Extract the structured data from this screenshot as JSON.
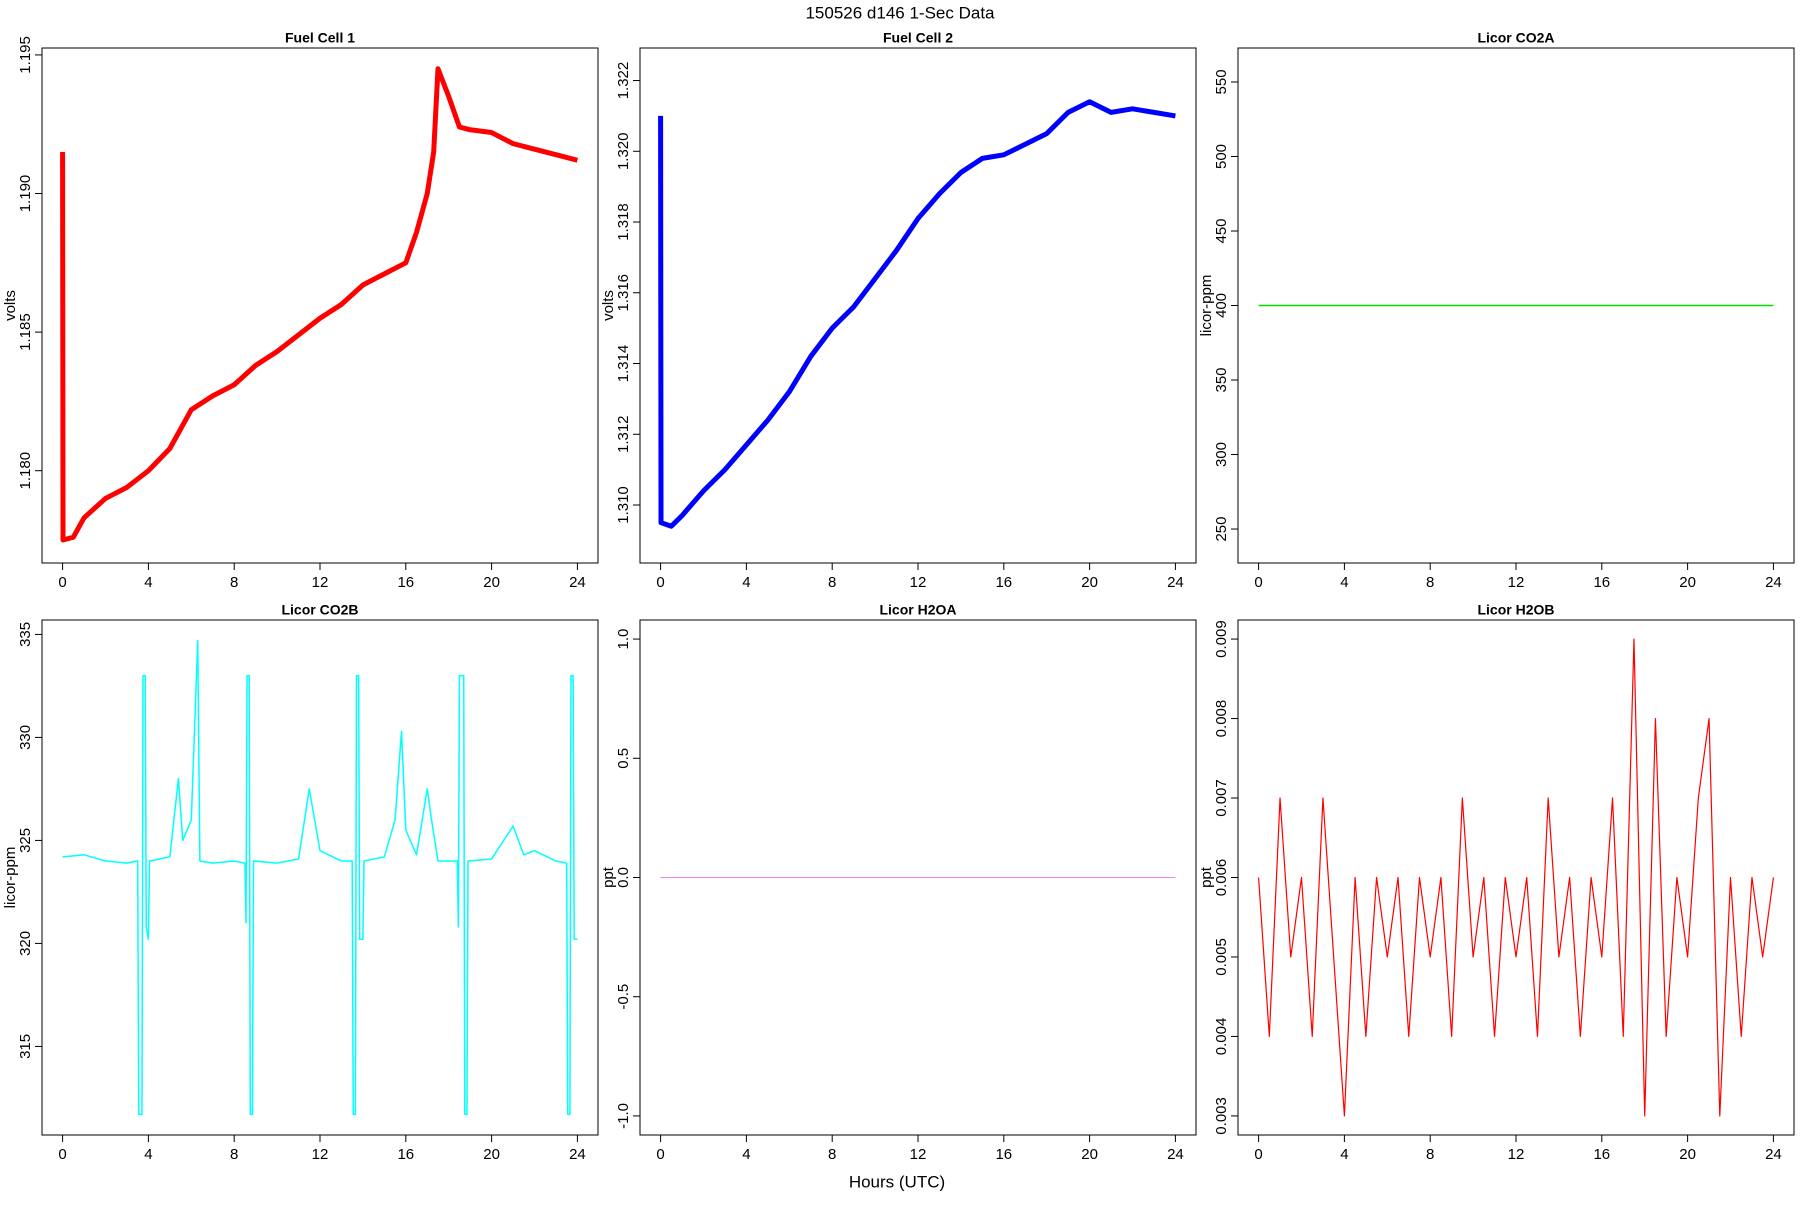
{
  "title": "150526   d146   1-Sec Data",
  "xlabel": "Hours (UTC)",
  "chart_data": [
    {
      "type": "line",
      "title": "Fuel Cell 1",
      "ylabel": "volts",
      "x": [
        0,
        0.02,
        0.5,
        1,
        2,
        3,
        4,
        5,
        6,
        7,
        8,
        9,
        10,
        11,
        12,
        13,
        14,
        15,
        16,
        16.5,
        17,
        17.3,
        17.5,
        18,
        18.5,
        19,
        20,
        21,
        22,
        23,
        24
      ],
      "series": [
        {
          "color": "#ff0000",
          "values": [
            1.1915,
            1.1775,
            1.1776,
            1.1783,
            1.179,
            1.1794,
            1.18,
            1.1808,
            1.1822,
            1.1827,
            1.1831,
            1.1838,
            1.1843,
            1.1849,
            1.1855,
            1.186,
            1.1867,
            1.1871,
            1.1875,
            1.1886,
            1.19,
            1.1915,
            1.1945,
            1.1935,
            1.1924,
            1.1923,
            1.1922,
            1.1918,
            1.1916,
            1.1914,
            1.1912
          ]
        }
      ],
      "xlim": [
        -0.96,
        24.96
      ],
      "xticks": [
        0,
        4,
        8,
        12,
        16,
        20,
        24
      ],
      "ylim": [
        1.17667,
        1.19525
      ],
      "yticks": [
        {
          "value": 1.18,
          "label": "1.180"
        },
        {
          "value": 1.185,
          "label": "1.185"
        },
        {
          "value": 1.19,
          "label": "1.190"
        },
        {
          "value": 1.195,
          "label": "1.195"
        }
      ]
    },
    {
      "type": "line",
      "title": "Fuel Cell 2",
      "ylabel": "volts",
      "x": [
        0,
        0.02,
        0.5,
        1,
        2,
        3,
        4,
        5,
        6,
        7,
        8,
        9,
        10,
        11,
        12,
        13,
        14,
        15,
        16,
        17,
        18,
        19,
        20,
        21,
        22,
        23,
        24
      ],
      "series": [
        {
          "color": "#0000ff",
          "values": [
            1.321,
            1.3095,
            1.3094,
            1.3097,
            1.3104,
            1.311,
            1.3117,
            1.3124,
            1.3132,
            1.3142,
            1.315,
            1.3156,
            1.3164,
            1.3172,
            1.3181,
            1.3188,
            1.3194,
            1.3198,
            1.3199,
            1.3202,
            1.3205,
            1.3211,
            1.3214,
            1.3211,
            1.3212,
            1.3211,
            1.321
          ]
        }
      ],
      "xlim": [
        -0.96,
        24.96
      ],
      "xticks": [
        0,
        4,
        8,
        12,
        16,
        20,
        24
      ],
      "ylim": [
        1.30836,
        1.32292
      ],
      "yticks": [
        {
          "value": 1.31,
          "label": "1.310"
        },
        1.312,
        1.314,
        1.316,
        1.318,
        {
          "value": 1.32,
          "label": "1.320"
        },
        1.322
      ]
    },
    {
      "type": "line",
      "title": "Licor CO2A",
      "ylabel": "licor-ppm",
      "x": [
        0,
        24
      ],
      "series": [
        {
          "color": "#00e000",
          "values": [
            400,
            400
          ]
        }
      ],
      "xlim": [
        -0.96,
        24.96
      ],
      "xticks": [
        0,
        4,
        8,
        12,
        16,
        20,
        24
      ],
      "ylim": [
        227.2,
        572.8
      ],
      "yticks": [
        250,
        300,
        350,
        400,
        450,
        500,
        550
      ]
    },
    {
      "type": "line",
      "title": "Licor CO2B",
      "ylabel": "licor-ppm",
      "x": [
        0,
        1,
        2,
        3,
        3.5,
        3.55,
        3.7,
        3.75,
        3.85,
        3.9,
        4,
        4.05,
        5,
        5.4,
        5.6,
        6,
        6.3,
        6.4,
        7,
        8,
        8.5,
        8.55,
        8.6,
        8.7,
        8.75,
        8.85,
        8.9,
        10,
        11,
        11.5,
        12,
        13,
        13.5,
        13.55,
        13.65,
        13.7,
        13.8,
        13.85,
        14,
        14.05,
        15,
        15.5,
        15.8,
        16,
        16.5,
        17,
        17.2,
        17.5,
        18,
        18.4,
        18.45,
        18.5,
        18.7,
        18.75,
        18.85,
        18.9,
        20,
        21,
        21.5,
        22,
        23,
        23.5,
        23.55,
        23.65,
        23.7,
        23.8,
        23.85,
        24
      ],
      "series": [
        {
          "color": "#00ffff",
          "values": [
            324.2,
            324.3,
            324,
            323.9,
            324,
            311.7,
            311.7,
            333,
            333,
            320.8,
            320.2,
            324,
            324.2,
            328,
            325,
            326,
            334.7,
            324,
            323.9,
            324,
            323.9,
            321,
            333,
            333,
            311.7,
            311.7,
            324,
            323.9,
            324.1,
            327.5,
            324.5,
            324,
            324,
            311.7,
            311.7,
            333,
            333,
            320.2,
            320.2,
            324,
            324.2,
            326,
            330.3,
            325.5,
            324.3,
            327.5,
            326,
            324,
            324,
            324,
            320.8,
            333,
            333,
            311.7,
            311.7,
            324,
            324.1,
            325.7,
            324.3,
            324.5,
            324,
            323.9,
            311.7,
            311.7,
            333,
            333,
            320.2,
            320.2
          ]
        }
      ],
      "xlim": [
        -0.96,
        24.96
      ],
      "xticks": [
        0,
        4,
        8,
        12,
        16,
        20,
        24
      ],
      "ylim": [
        310.7,
        335.7
      ],
      "yticks": [
        315,
        320,
        325,
        330,
        335
      ]
    },
    {
      "type": "line",
      "title": "Licor H2OA",
      "ylabel": "ppt",
      "x": [
        0,
        24
      ],
      "series": [
        {
          "color": "#ee82ee",
          "values": [
            0,
            0
          ]
        }
      ],
      "xlim": [
        -0.96,
        24.96
      ],
      "xticks": [
        0,
        4,
        8,
        12,
        16,
        20,
        24
      ],
      "ylim": [
        -1.08,
        1.08
      ],
      "yticks": [
        {
          "value": -1,
          "label": "-1.0"
        },
        -0.5,
        {
          "value": 0,
          "label": "0.0"
        },
        0.5,
        {
          "value": 1,
          "label": "1.0"
        }
      ]
    },
    {
      "type": "line",
      "title": "Licor H2OB",
      "ylabel": "ppt",
      "x": [
        0,
        0.5,
        1,
        1.5,
        2,
        2.5,
        3,
        3.5,
        4,
        4.5,
        5,
        5.5,
        6,
        6.5,
        7,
        7.5,
        8,
        8.5,
        9,
        9.5,
        10,
        10.5,
        11,
        11.5,
        12,
        12.5,
        13,
        13.5,
        14,
        14.5,
        15,
        15.5,
        16,
        16.5,
        17,
        17.5,
        18,
        18.5,
        19,
        19.5,
        20,
        20.5,
        21,
        21.5,
        22,
        22.5,
        23,
        23.5,
        24
      ],
      "series": [
        {
          "color": "#ff0000",
          "values": [
            0.006,
            0.004,
            0.007,
            0.005,
            0.006,
            0.004,
            0.007,
            0.005,
            0.003,
            0.006,
            0.004,
            0.006,
            0.005,
            0.006,
            0.004,
            0.006,
            0.005,
            0.006,
            0.004,
            0.007,
            0.005,
            0.006,
            0.004,
            0.006,
            0.005,
            0.006,
            0.004,
            0.007,
            0.005,
            0.006,
            0.004,
            0.006,
            0.005,
            0.007,
            0.004,
            0.009,
            0.003,
            0.008,
            0.004,
            0.006,
            0.005,
            0.007,
            0.008,
            0.003,
            0.006,
            0.004,
            0.006,
            0.005,
            0.006
          ]
        }
      ],
      "xlim": [
        -0.96,
        24.96
      ],
      "xticks": [
        0,
        4,
        8,
        12,
        16,
        20,
        24
      ],
      "ylim": [
        0.00276,
        0.00924
      ],
      "yticks": [
        0.003,
        0.004,
        0.005,
        0.006,
        0.007,
        0.008,
        0.009
      ]
    }
  ]
}
